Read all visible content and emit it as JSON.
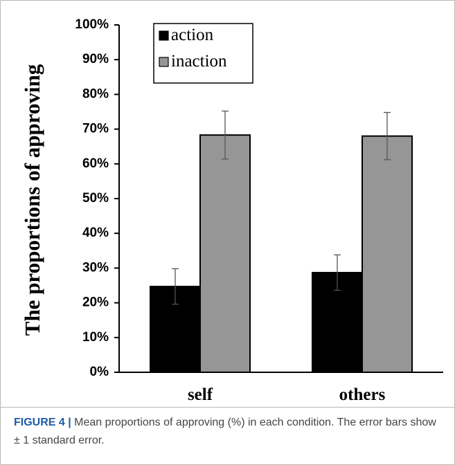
{
  "chart_data": {
    "type": "bar",
    "categories": [
      "self",
      "others"
    ],
    "series": [
      {
        "name": "action",
        "values": [
          24.7,
          28.7
        ],
        "errors": [
          5.1,
          5.1
        ],
        "color": "#000000"
      },
      {
        "name": "inaction",
        "values": [
          68.3,
          68.0
        ],
        "errors": [
          6.9,
          6.8
        ],
        "color": "#969696"
      }
    ],
    "ylabel": "The proportions of approving",
    "xlabel": "",
    "ylim": [
      0,
      100
    ],
    "yticks": [
      "0%",
      "10%",
      "20%",
      "30%",
      "40%",
      "50%",
      "60%",
      "70%",
      "80%",
      "90%",
      "100%"
    ],
    "legend_position": "top-left",
    "grid": false
  },
  "caption": {
    "label": "FIGURE 4 |",
    "text": " Mean proportions of approving (%) in each condition. The error bars show ± 1 standard error."
  }
}
